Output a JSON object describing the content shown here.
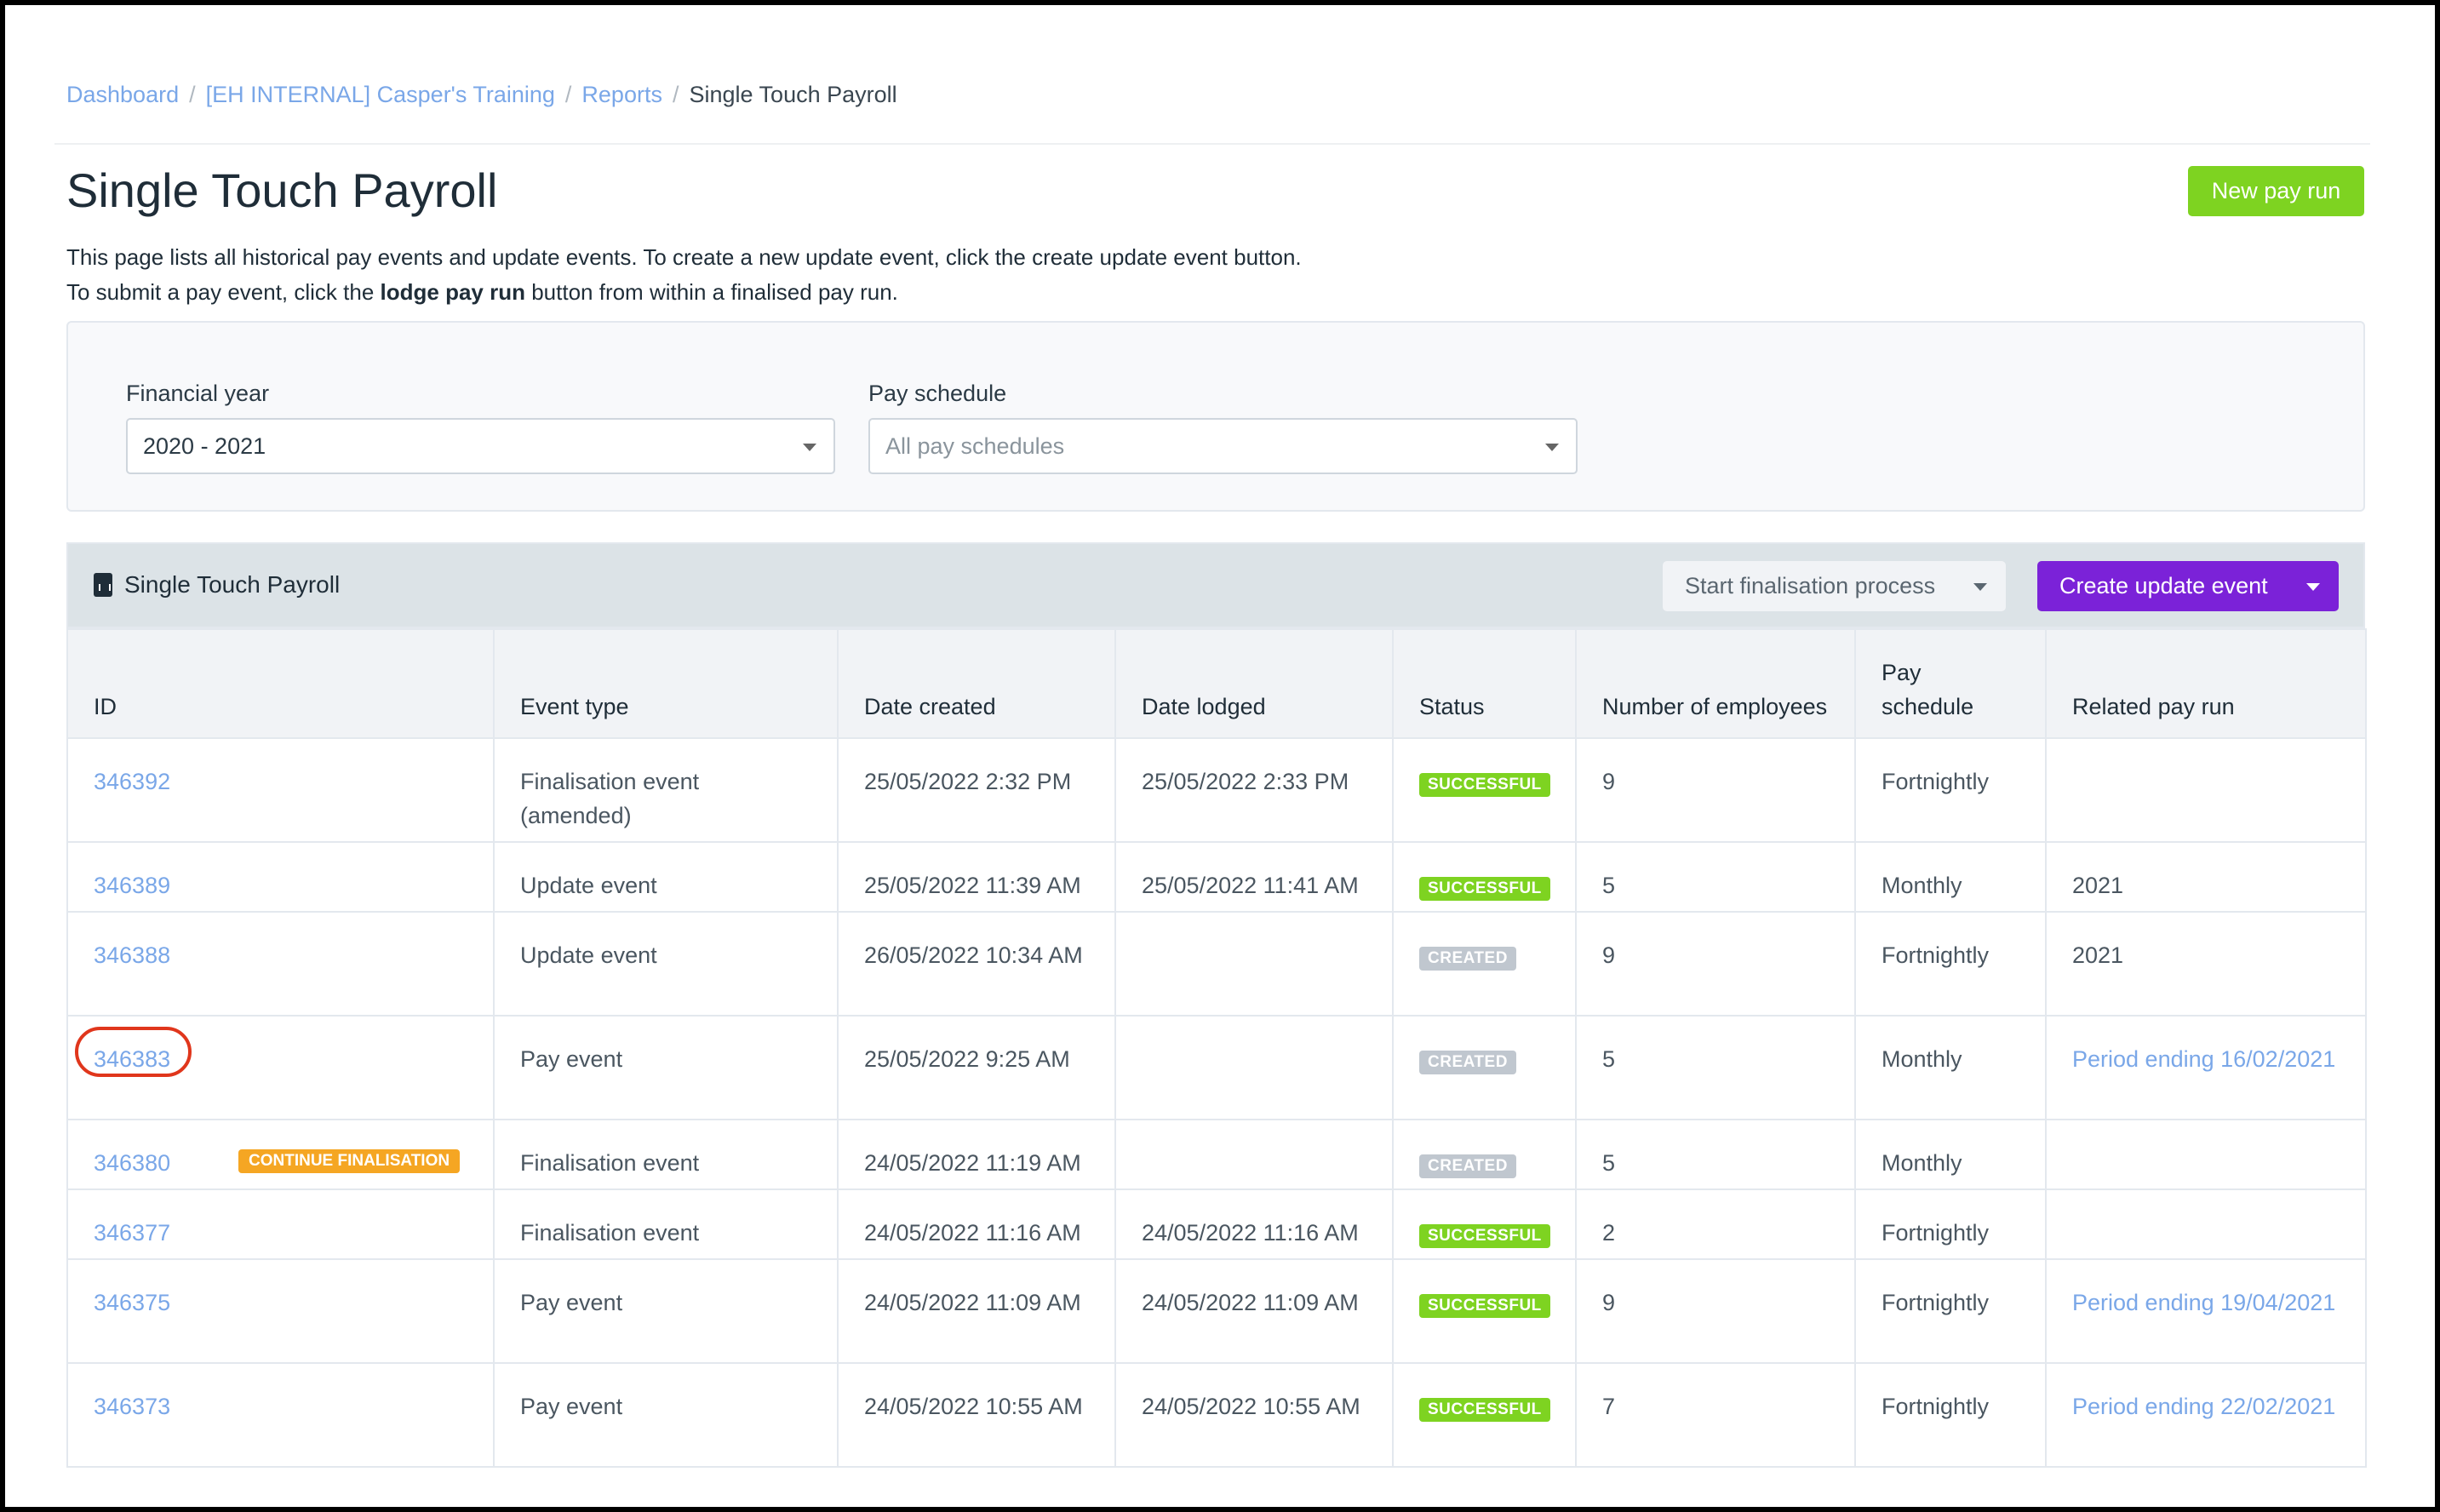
{
  "breadcrumb": [
    "Dashboard",
    "[EH INTERNAL] Casper's Training",
    "Reports",
    "Single Touch Payroll"
  ],
  "title": "Single Touch Payroll",
  "new_pay_run": "New pay run",
  "desc": {
    "line1": "This page lists all historical pay events and update events. To create a new update event, click the create update event button.",
    "line2_a": "To submit a pay event, click the ",
    "line2_b": "lodge pay run",
    "line2_c": " button from within a finalised pay run."
  },
  "filters": {
    "fy_label": "Financial year",
    "fy_value": "2020 - 2021",
    "ps_label": "Pay schedule",
    "ps_placeholder": "All pay schedules"
  },
  "panel": {
    "title": "Single Touch Payroll",
    "start_finalisation": "Start finalisation process",
    "create_update": "Create update event"
  },
  "colors": {
    "successful": "#7ed321",
    "created": "#c0c7cf",
    "continue": "#f5a623",
    "primary": "#7b22d8",
    "highlight": "#e0361c"
  },
  "columns": [
    "ID",
    "Event type",
    "Date created",
    "Date lodged",
    "Status",
    "Number of employees",
    "Pay schedule",
    "Related pay run"
  ],
  "rows": [
    {
      "id": "346392",
      "type": "Finalisation event (amended)",
      "created": "25/05/2022 2:32 PM",
      "lodged": "25/05/2022 2:33 PM",
      "status": "SUCCESSFUL",
      "employees": "9",
      "schedule": "Fortnightly",
      "related": ""
    },
    {
      "id": "346389",
      "type": "Update event",
      "created": "25/05/2022 11:39 AM",
      "lodged": "25/05/2022 11:41 AM",
      "status": "SUCCESSFUL",
      "employees": "5",
      "schedule": "Monthly",
      "related": "2021"
    },
    {
      "id": "346388",
      "type": "Update event",
      "created": "26/05/2022 10:34 AM",
      "lodged": "",
      "status": "CREATED",
      "employees": "9",
      "schedule": "Fortnightly",
      "related": "2021"
    },
    {
      "id": "346383",
      "type": "Pay event",
      "created": "25/05/2022 9:25 AM",
      "lodged": "",
      "status": "CREATED",
      "employees": "5",
      "schedule": "Monthly",
      "related": "Period ending 16/02/2021",
      "related_link": true,
      "highlighted": true
    },
    {
      "id": "346380",
      "badge": "CONTINUE FINALISATION",
      "type": "Finalisation event",
      "created": "24/05/2022 11:19 AM",
      "lodged": "",
      "status": "CREATED",
      "employees": "5",
      "schedule": "Monthly",
      "related": ""
    },
    {
      "id": "346377",
      "type": "Finalisation event",
      "created": "24/05/2022 11:16 AM",
      "lodged": "24/05/2022 11:16 AM",
      "status": "SUCCESSFUL",
      "employees": "2",
      "schedule": "Fortnightly",
      "related": ""
    },
    {
      "id": "346375",
      "type": "Pay event",
      "created": "24/05/2022 11:09 AM",
      "lodged": "24/05/2022 11:09 AM",
      "status": "SUCCESSFUL",
      "employees": "9",
      "schedule": "Fortnightly",
      "related": "Period ending 19/04/2021",
      "related_link": true
    },
    {
      "id": "346373",
      "type": "Pay event",
      "created": "24/05/2022 10:55 AM",
      "lodged": "24/05/2022 10:55 AM",
      "status": "SUCCESSFUL",
      "employees": "7",
      "schedule": "Fortnightly",
      "related": "Period ending 22/02/2021",
      "related_link": true
    }
  ]
}
